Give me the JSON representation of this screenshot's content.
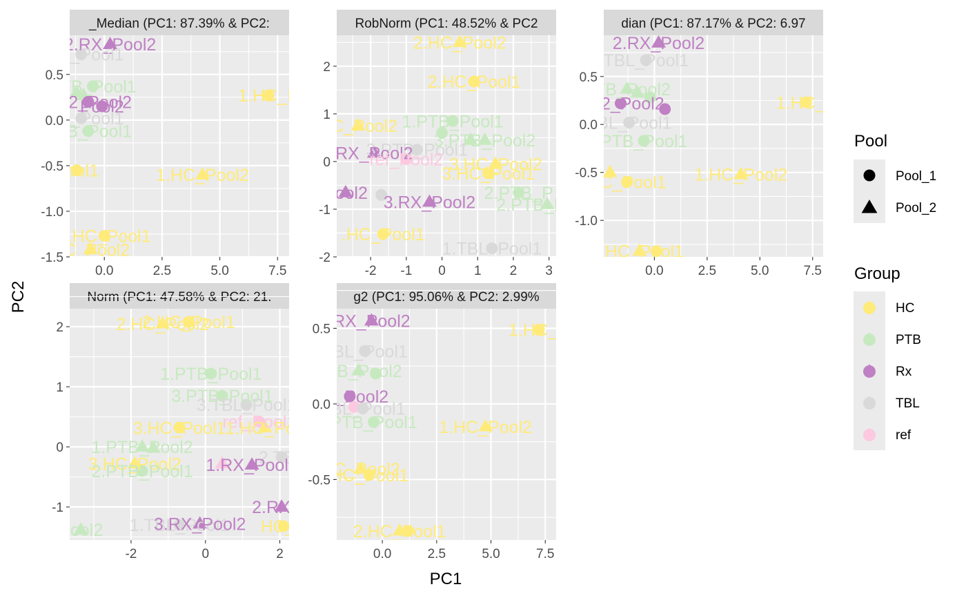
{
  "figure": {
    "xlabel": "PC1",
    "ylabel": "PC2"
  },
  "colors": {
    "HC": "#FEEB7A",
    "PTB": "#C7E9C0",
    "Rx": "#BF80C4",
    "TBL": "#D9D9D9",
    "ref": "#FCC9E0",
    "panel_bg": "#EBEBEB",
    "strip_bg": "#D9D9D9",
    "grid": "#FFFFFF"
  },
  "legend": {
    "pool": {
      "title": "Pool",
      "items": [
        {
          "label": "Pool_1",
          "shape": "circle"
        },
        {
          "label": "Pool_2",
          "shape": "triangle"
        }
      ]
    },
    "group": {
      "title": "Group",
      "items": [
        {
          "label": "HC",
          "key": "HC"
        },
        {
          "label": "PTB",
          "key": "PTB"
        },
        {
          "label": "Rx",
          "key": "Rx"
        },
        {
          "label": "TBL",
          "key": "TBL"
        },
        {
          "label": "ref",
          "key": "ref"
        }
      ]
    }
  },
  "chart_data": [
    {
      "type": "scatter",
      "title": "_Median (PC1: 87.39% & PC2:",
      "xlim": [
        -1.5,
        8.0
      ],
      "ylim": [
        -1.5,
        0.93
      ],
      "xticks": [
        0,
        2.5,
        5.0,
        7.5
      ],
      "xtick_labels": [
        "0.0",
        "2.5",
        "5.0",
        "7.5"
      ],
      "yticks": [
        -1.5,
        -1.0,
        -0.5,
        0.0,
        0.5
      ],
      "ytick_labels": [
        "-1.5",
        "-1.0",
        "-0.5",
        "0.0",
        "0.5"
      ],
      "points": [
        {
          "x": 0.25,
          "y": 0.83,
          "group": "Rx",
          "pool": "Pool_2",
          "label": "2.RX_Pool2"
        },
        {
          "x": -1.0,
          "y": 0.72,
          "group": "TBL",
          "pool": "Pool_1",
          "label": "TBL_Pool1"
        },
        {
          "x": -0.5,
          "y": 0.37,
          "group": "PTB",
          "pool": "Pool_1",
          "label": "PTB_Pool1"
        },
        {
          "x": -1.2,
          "y": 0.3,
          "group": "PTB",
          "pool": "Pool_2",
          "label": ""
        },
        {
          "x": -0.9,
          "y": 0.27,
          "group": "PTB",
          "pool": "Pool_2",
          "label": ""
        },
        {
          "x": -0.7,
          "y": 0.2,
          "group": "Rx",
          "pool": "Pool_1",
          "label": "RX2_Pool2"
        },
        {
          "x": -0.1,
          "y": 0.15,
          "group": "Rx",
          "pool": "Pool_1",
          "label": "Pool2"
        },
        {
          "x": -1.0,
          "y": 0.02,
          "group": "TBL",
          "pool": "Pool_1",
          "label": "TBL_Pool1"
        },
        {
          "x": -0.7,
          "y": -0.12,
          "group": "PTB",
          "pool": "Pool_1",
          "label": "PTB_Pool1"
        },
        {
          "x": 7.1,
          "y": 0.27,
          "group": "HC",
          "pool": "Pool_1",
          "label": "1.HC_P"
        },
        {
          "x": -1.9,
          "y": -0.55,
          "group": "HC",
          "pool": "Pool_2",
          "label": ""
        },
        {
          "x": -1.2,
          "y": -0.55,
          "group": "HC",
          "pool": "Pool_1",
          "label": "Pool1"
        },
        {
          "x": 4.25,
          "y": -0.6,
          "group": "HC",
          "pool": "Pool_2",
          "label": "1.HC_Pool2"
        },
        {
          "x": 0.0,
          "y": -1.27,
          "group": "HC",
          "pool": "Pool_1",
          "label": "2.HC_Pool1"
        },
        {
          "x": -0.6,
          "y": -1.42,
          "group": "HC",
          "pool": "Pool_2",
          "label": "HC_Pool2"
        }
      ]
    },
    {
      "type": "scatter",
      "title": "RobNorm (PC1: 48.52% & PC2",
      "xlim": [
        -2.95,
        3.2
      ],
      "ylim": [
        -2.0,
        2.65
      ],
      "xticks": [
        -2,
        -1,
        0,
        1,
        2,
        3
      ],
      "xtick_labels": [
        "-2",
        "-1",
        "0",
        "1",
        "2",
        "3"
      ],
      "yticks": [
        -2,
        -1,
        0,
        1,
        2
      ],
      "ytick_labels": [
        "-2",
        "-1",
        "0",
        "1",
        "2"
      ],
      "points": [
        {
          "x": 0.5,
          "y": 2.5,
          "group": "HC",
          "pool": "Pool_2",
          "label": "2.HC_Pool2"
        },
        {
          "x": 0.9,
          "y": 1.68,
          "group": "HC",
          "pool": "Pool_1",
          "label": "2.HC_Pool1"
        },
        {
          "x": 0.3,
          "y": 0.85,
          "group": "PTB",
          "pool": "Pool_1",
          "label": "1.PTB_Pool1"
        },
        {
          "x": -2.35,
          "y": 0.75,
          "group": "HC",
          "pool": "Pool_2",
          "label": "HC_Pool2"
        },
        {
          "x": 0.0,
          "y": 0.6,
          "group": "PTB",
          "pool": "Pool_1",
          "label": ""
        },
        {
          "x": 1.2,
          "y": 0.45,
          "group": "PTB",
          "pool": "Pool_2",
          "label": "3.PTB_Pool2"
        },
        {
          "x": 0.8,
          "y": 0.45,
          "group": "PTB",
          "pool": "Pool_2",
          "label": ""
        },
        {
          "x": -0.7,
          "y": 0.25,
          "group": "TBL",
          "pool": "Pool_1",
          "label": "3.PTB_Pool1"
        },
        {
          "x": -1.9,
          "y": 0.18,
          "group": "Rx",
          "pool": "Pool_2",
          "label": "RX_Pool2"
        },
        {
          "x": -1.0,
          "y": 0.05,
          "group": "ref",
          "pool": "Pool_1",
          "label": "ref_Pool2"
        },
        {
          "x": 1.5,
          "y": -0.05,
          "group": "HC",
          "pool": "Pool_2",
          "label": "3.HC_Pool2"
        },
        {
          "x": 1.3,
          "y": -0.25,
          "group": "HC",
          "pool": "Pool_1",
          "label": "3.HC_Pool1"
        },
        {
          "x": 2.15,
          "y": -0.65,
          "group": "PTB",
          "pool": "Pool_1",
          "label": "2.PTB_P"
        },
        {
          "x": 2.95,
          "y": -0.9,
          "group": "PTB",
          "pool": "Pool_2",
          "label": "2.PTB_Pool2"
        },
        {
          "x": -2.7,
          "y": -0.65,
          "group": "Rx",
          "pool": "Pool_2",
          "label": "Pool2"
        },
        {
          "x": -1.7,
          "y": -0.7,
          "group": "TBL",
          "pool": "Pool_1",
          "label": ""
        },
        {
          "x": -0.35,
          "y": -0.85,
          "group": "Rx",
          "pool": "Pool_2",
          "label": "3.RX_Pool2"
        },
        {
          "x": -1.65,
          "y": -1.52,
          "group": "HC",
          "pool": "Pool_1",
          "label": ".HC_Pool1"
        },
        {
          "x": 1.4,
          "y": -1.82,
          "group": "TBL",
          "pool": "Pool_1",
          "label": "1.TBL_Pool1"
        }
      ]
    },
    {
      "type": "scatter",
      "title": "dian (PC1: 87.17% & PC2: 6.97",
      "xlim": [
        -2.4,
        8.0
      ],
      "ylim": [
        -1.38,
        0.93
      ],
      "xticks": [
        0,
        2.5,
        5.0,
        7.5
      ],
      "xtick_labels": [
        "0.0",
        "2.5",
        "5.0",
        "7.5"
      ],
      "yticks": [
        -1.0,
        -0.5,
        0.0,
        0.5
      ],
      "ytick_labels": [
        "-1.0",
        "-0.5",
        "0.0",
        "0.5"
      ],
      "points": [
        {
          "x": 0.2,
          "y": 0.85,
          "group": "Rx",
          "pool": "Pool_2",
          "label": "2.RX_Pool2"
        },
        {
          "x": -0.4,
          "y": 0.67,
          "group": "TBL",
          "pool": "Pool_1",
          "label": "TBL_Pool1"
        },
        {
          "x": -1.3,
          "y": 0.37,
          "group": "PTB",
          "pool": "Pool_2",
          "label": "PTB_Pool2"
        },
        {
          "x": -0.8,
          "y": 0.33,
          "group": "PTB",
          "pool": "Pool_2",
          "label": ""
        },
        {
          "x": -0.2,
          "y": 0.28,
          "group": "PTB",
          "pool": "Pool_1",
          "label": ""
        },
        {
          "x": -1.6,
          "y": 0.22,
          "group": "Rx",
          "pool": "Pool_1",
          "label": "RX2_Pool2"
        },
        {
          "x": 0.5,
          "y": 0.16,
          "group": "Rx",
          "pool": "Pool_1",
          "label": ""
        },
        {
          "x": -1.2,
          "y": 0.02,
          "group": "TBL",
          "pool": "Pool_1",
          "label": "TBL_Pool1"
        },
        {
          "x": -0.5,
          "y": -0.17,
          "group": "PTB",
          "pool": "Pool_1",
          "label": "PTB_Pool1"
        },
        {
          "x": 7.2,
          "y": 0.23,
          "group": "HC",
          "pool": "Pool_1",
          "label": "1.HC_P"
        },
        {
          "x": -2.1,
          "y": -0.5,
          "group": "HC",
          "pool": "Pool_2",
          "label": ""
        },
        {
          "x": -1.3,
          "y": -0.6,
          "group": "HC",
          "pool": "Pool_1",
          "label": "HC_Pool1"
        },
        {
          "x": 4.1,
          "y": -0.52,
          "group": "HC",
          "pool": "Pool_2",
          "label": "1.HC_Pool2"
        },
        {
          "x": -0.7,
          "y": -1.32,
          "group": "HC",
          "pool": "Pool_2",
          "label": "2HC_Pool1"
        },
        {
          "x": 0.1,
          "y": -1.32,
          "group": "HC",
          "pool": "Pool_1",
          "label": ""
        }
      ]
    },
    {
      "type": "scatter",
      "title": "Norm (PC1: 47.58% & PC2: 21.",
      "xlim": [
        -3.65,
        2.25
      ],
      "ylim": [
        -1.55,
        2.3
      ],
      "xticks": [
        -2,
        0,
        2
      ],
      "xtick_labels": [
        "-2",
        "0",
        "2"
      ],
      "yticks": [
        -1,
        0,
        1,
        2
      ],
      "ytick_labels": [
        "-1",
        "0",
        "1",
        "2"
      ],
      "points": [
        {
          "x": -1.15,
          "y": 2.05,
          "group": "HC",
          "pool": "Pool_2",
          "label": "2.HC_Pool2"
        },
        {
          "x": -0.45,
          "y": 2.08,
          "group": "HC",
          "pool": "Pool_1",
          "label": "2.HC_Pool1"
        },
        {
          "x": 0.15,
          "y": 1.22,
          "group": "PTB",
          "pool": "Pool_1",
          "label": "1.PTB_Pool1"
        },
        {
          "x": 0.45,
          "y": 0.85,
          "group": "PTB",
          "pool": "Pool_1",
          "label": "3.PTB_Pool1"
        },
        {
          "x": 1.1,
          "y": 0.7,
          "group": "TBL",
          "pool": "Pool_1",
          "label": "3.TBL_Pool1"
        },
        {
          "x": 1.45,
          "y": 0.42,
          "group": "ref",
          "pool": "Pool_1",
          "label": "ref_Pool1"
        },
        {
          "x": -0.7,
          "y": 0.32,
          "group": "HC",
          "pool": "Pool_1",
          "label": "3.HC_Pool1"
        },
        {
          "x": 1.6,
          "y": 0.32,
          "group": "HC",
          "pool": "Pool_2",
          "label": "1.HC_Poo"
        },
        {
          "x": -1.7,
          "y": 0.0,
          "group": "PTB",
          "pool": "Pool_2",
          "label": "1.PTB_Pool2"
        },
        {
          "x": -1.4,
          "y": -0.02,
          "group": "PTB",
          "pool": "Pool_2",
          "label": ""
        },
        {
          "x": 2.05,
          "y": -0.17,
          "group": "TBL",
          "pool": "Pool_1",
          "label": "2.TBL"
        },
        {
          "x": -1.9,
          "y": -0.28,
          "group": "HC",
          "pool": "Pool_2",
          "label": "3.HC_Pool2"
        },
        {
          "x": 0.45,
          "y": -0.28,
          "group": "ref",
          "pool": "Pool_2",
          "label": ""
        },
        {
          "x": 1.25,
          "y": -0.3,
          "group": "Rx",
          "pool": "Pool_2",
          "label": "1.RX_Pool2"
        },
        {
          "x": -1.7,
          "y": -0.4,
          "group": "PTB",
          "pool": "Pool_1",
          "label": "2.PTB_Pool1"
        },
        {
          "x": 2.05,
          "y": -1.0,
          "group": "Rx",
          "pool": "Pool_2",
          "label": "2.RX_P"
        },
        {
          "x": -0.7,
          "y": -1.3,
          "group": "TBL",
          "pool": "Pool_1",
          "label": "1.TBL_Pool1"
        },
        {
          "x": -0.15,
          "y": -1.28,
          "group": "Rx",
          "pool": "Pool_2",
          "label": "3.RX_Pool2"
        },
        {
          "x": 2.1,
          "y": -1.32,
          "group": "HC",
          "pool": "Pool_1",
          "label": "HC_P"
        },
        {
          "x": -3.35,
          "y": -1.38,
          "group": "PTB",
          "pool": "Pool_2",
          "label": "Pool2"
        }
      ]
    },
    {
      "type": "scatter",
      "title": "g2 (PC1: 95.06% & PC2: 2.99%",
      "xlim": [
        -2.1,
        8.0
      ],
      "ylim": [
        -0.9,
        0.63
      ],
      "xticks": [
        0,
        2.5,
        5.0,
        7.5
      ],
      "xtick_labels": [
        "0.0",
        "2.5",
        "5.0",
        "7.5"
      ],
      "yticks": [
        -0.5,
        0.0,
        0.5
      ],
      "ytick_labels": [
        "-0.5",
        "0.0",
        "0.5"
      ],
      "points": [
        {
          "x": -0.5,
          "y": 0.55,
          "group": "Rx",
          "pool": "Pool_2",
          "label": "RX_Pool2"
        },
        {
          "x": 7.2,
          "y": 0.49,
          "group": "HC",
          "pool": "Pool_1",
          "label": "1.HC_P"
        },
        {
          "x": -0.8,
          "y": 0.35,
          "group": "TBL",
          "pool": "Pool_1",
          "label": "TBL_Pool1"
        },
        {
          "x": -1.1,
          "y": 0.22,
          "group": "PTB",
          "pool": "Pool_2",
          "label": "PTB_Pool2"
        },
        {
          "x": -0.3,
          "y": 0.2,
          "group": "PTB",
          "pool": "Pool_1",
          "label": ""
        },
        {
          "x": -1.5,
          "y": 0.05,
          "group": "Rx",
          "pool": "Pool_1",
          "label": "RX_Pool2"
        },
        {
          "x": -1.3,
          "y": -0.02,
          "group": "ref",
          "pool": "Pool_1",
          "label": ""
        },
        {
          "x": -0.9,
          "y": -0.03,
          "group": "TBL",
          "pool": "Pool_1",
          "label": "TBL_Pool1"
        },
        {
          "x": -0.4,
          "y": -0.12,
          "group": "PTB",
          "pool": "Pool_1",
          "label": "PTB_Pool1"
        },
        {
          "x": 4.75,
          "y": -0.15,
          "group": "HC",
          "pool": "Pool_2",
          "label": "1.HC_Pool2"
        },
        {
          "x": -1.0,
          "y": -0.43,
          "group": "HC",
          "pool": "Pool_2",
          "label": "HC_Pool2"
        },
        {
          "x": -0.6,
          "y": -0.47,
          "group": "HC",
          "pool": "Pool_1",
          "label": "HC_Pool1"
        },
        {
          "x": 0.8,
          "y": -0.84,
          "group": "HC",
          "pool": "Pool_2",
          "label": "2.HC_Pool1"
        },
        {
          "x": 1.2,
          "y": -0.84,
          "group": "HC",
          "pool": "Pool_1",
          "label": ""
        }
      ]
    }
  ]
}
